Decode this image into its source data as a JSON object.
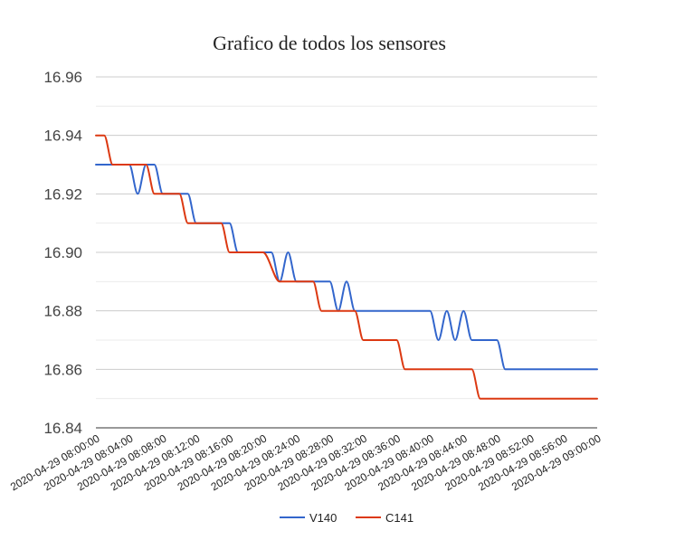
{
  "chart_data": {
    "type": "line",
    "title": "Grafico de todos los sensores",
    "xlabel": "",
    "ylabel": "",
    "ylim": [
      16.84,
      16.96
    ],
    "y_ticks": [
      "16.84",
      "16.86",
      "16.88",
      "16.90",
      "16.92",
      "16.94",
      "16.96"
    ],
    "x_range": [
      "2020-04-29 08:00:00",
      "2020-04-29 09:00:00"
    ],
    "x_ticks": [
      "2020-04-29 08:00:00",
      "2020-04-29 08:04:00",
      "2020-04-29 08:08:00",
      "2020-04-29 08:12:00",
      "2020-04-29 08:16:00",
      "2020-04-29 08:20:00",
      "2020-04-29 08:24:00",
      "2020-04-29 08:28:00",
      "2020-04-29 08:32:00",
      "2020-04-29 08:36:00",
      "2020-04-29 08:40:00",
      "2020-04-29 08:44:00",
      "2020-04-29 08:48:00",
      "2020-04-29 08:52:00",
      "2020-04-29 08:56:00",
      "2020-04-29 09:00:00"
    ],
    "grid": true,
    "legend_position": "bottom",
    "series": [
      {
        "name": "V140",
        "color": "#3366cc",
        "points": [
          [
            "2020-04-29 08:00:00",
            16.93
          ],
          [
            "2020-04-29 08:03:00",
            16.93
          ],
          [
            "2020-04-29 08:04:00",
            16.93
          ],
          [
            "2020-04-29 08:05:00",
            16.92
          ],
          [
            "2020-04-29 08:06:00",
            16.93
          ],
          [
            "2020-04-29 08:07:00",
            16.93
          ],
          [
            "2020-04-29 08:08:00",
            16.92
          ],
          [
            "2020-04-29 08:11:00",
            16.92
          ],
          [
            "2020-04-29 08:12:00",
            16.91
          ],
          [
            "2020-04-29 08:15:00",
            16.91
          ],
          [
            "2020-04-29 08:16:00",
            16.91
          ],
          [
            "2020-04-29 08:17:00",
            16.9
          ],
          [
            "2020-04-29 08:20:00",
            16.9
          ],
          [
            "2020-04-29 08:21:00",
            16.9
          ],
          [
            "2020-04-29 08:22:00",
            16.89
          ],
          [
            "2020-04-29 08:23:00",
            16.9
          ],
          [
            "2020-04-29 08:24:00",
            16.89
          ],
          [
            "2020-04-29 08:27:00",
            16.89
          ],
          [
            "2020-04-29 08:28:00",
            16.89
          ],
          [
            "2020-04-29 08:29:00",
            16.88
          ],
          [
            "2020-04-29 08:30:00",
            16.89
          ],
          [
            "2020-04-29 08:31:00",
            16.88
          ],
          [
            "2020-04-29 08:35:00",
            16.88
          ],
          [
            "2020-04-29 08:36:00",
            16.88
          ],
          [
            "2020-04-29 08:39:00",
            16.88
          ],
          [
            "2020-04-29 08:40:00",
            16.88
          ],
          [
            "2020-04-29 08:41:00",
            16.87
          ],
          [
            "2020-04-29 08:42:00",
            16.88
          ],
          [
            "2020-04-29 08:43:00",
            16.87
          ],
          [
            "2020-04-29 08:44:00",
            16.88
          ],
          [
            "2020-04-29 08:45:00",
            16.87
          ],
          [
            "2020-04-29 08:48:00",
            16.87
          ],
          [
            "2020-04-29 08:49:00",
            16.86
          ],
          [
            "2020-04-29 08:52:00",
            16.86
          ],
          [
            "2020-04-29 08:53:00",
            16.86
          ],
          [
            "2020-04-29 08:56:00",
            16.86
          ],
          [
            "2020-04-29 09:00:00",
            16.86
          ]
        ]
      },
      {
        "name": "C141",
        "color": "#dc3912",
        "points": [
          [
            "2020-04-29 08:00:00",
            16.94
          ],
          [
            "2020-04-29 08:01:00",
            16.94
          ],
          [
            "2020-04-29 08:02:00",
            16.93
          ],
          [
            "2020-04-29 08:05:00",
            16.93
          ],
          [
            "2020-04-29 08:06:00",
            16.93
          ],
          [
            "2020-04-29 08:07:00",
            16.92
          ],
          [
            "2020-04-29 08:10:00",
            16.92
          ],
          [
            "2020-04-29 08:11:00",
            16.91
          ],
          [
            "2020-04-29 08:14:00",
            16.91
          ],
          [
            "2020-04-29 08:15:00",
            16.91
          ],
          [
            "2020-04-29 08:16:00",
            16.9
          ],
          [
            "2020-04-29 08:19:00",
            16.9
          ],
          [
            "2020-04-29 08:20:00",
            16.9
          ],
          [
            "2020-04-29 08:22:00",
            16.89
          ],
          [
            "2020-04-29 08:24:00",
            16.89
          ],
          [
            "2020-04-29 08:26:00",
            16.89
          ],
          [
            "2020-04-29 08:27:00",
            16.88
          ],
          [
            "2020-04-29 08:30:00",
            16.88
          ],
          [
            "2020-04-29 08:31:00",
            16.88
          ],
          [
            "2020-04-29 08:32:00",
            16.87
          ],
          [
            "2020-04-29 08:35:00",
            16.87
          ],
          [
            "2020-04-29 08:36:00",
            16.87
          ],
          [
            "2020-04-29 08:37:00",
            16.86
          ],
          [
            "2020-04-29 08:39:00",
            16.86
          ],
          [
            "2020-04-29 08:40:00",
            16.86
          ],
          [
            "2020-04-29 08:41:00",
            16.86
          ],
          [
            "2020-04-29 08:44:00",
            16.86
          ],
          [
            "2020-04-29 08:45:00",
            16.86
          ],
          [
            "2020-04-29 08:46:00",
            16.85
          ],
          [
            "2020-04-29 08:48:00",
            16.85
          ],
          [
            "2020-04-29 08:49:00",
            16.85
          ],
          [
            "2020-04-29 08:50:00",
            16.85
          ],
          [
            "2020-04-29 08:53:00",
            16.85
          ],
          [
            "2020-04-29 08:54:00",
            16.85
          ],
          [
            "2020-04-29 09:00:00",
            16.85
          ]
        ]
      }
    ]
  }
}
